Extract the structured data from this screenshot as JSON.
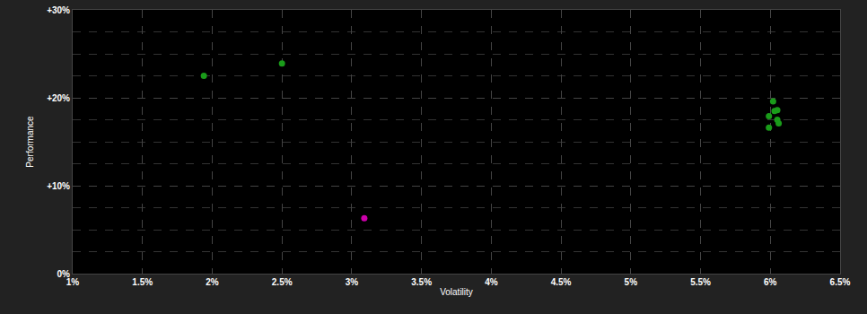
{
  "chart_data": {
    "type": "scatter",
    "x_label": "Volatility",
    "y_label": "Performance",
    "series": [
      {
        "color": "#1a9c1a",
        "marker": "circle",
        "x": [
          1.94,
          2.5,
          6.02,
          6.03,
          6.05,
          5.99,
          6.05,
          6.06,
          5.99
        ],
        "values": [
          22.5,
          23.9,
          19.6,
          18.5,
          18.6,
          17.9,
          17.5,
          17.1,
          16.6
        ]
      },
      {
        "color": "#cc00aa",
        "marker": "circle",
        "x": [
          3.09
        ],
        "values": [
          6.3
        ]
      }
    ],
    "xlim": [
      1,
      6.5
    ],
    "xticks": [
      {
        "value": 1,
        "label": "1%"
      },
      {
        "value": 1.5,
        "label": "1.5%"
      },
      {
        "value": 2,
        "label": "2%"
      },
      {
        "value": 2.5,
        "label": "2.5%"
      },
      {
        "value": 3,
        "label": "3%"
      },
      {
        "value": 3.5,
        "label": "3.5%"
      },
      {
        "value": 4,
        "label": "4%"
      },
      {
        "value": 4.5,
        "label": "4.5%"
      },
      {
        "value": 5,
        "label": "5%"
      },
      {
        "value": 5.5,
        "label": "5.5%"
      },
      {
        "value": 6,
        "label": "6%"
      },
      {
        "value": 6.5,
        "label": "6.5%"
      }
    ],
    "ylim": [
      0,
      30
    ],
    "yticks": [
      {
        "value": 0,
        "label": "0%"
      },
      {
        "value": 10,
        "label": "+10%"
      },
      {
        "value": 20,
        "label": "+20%"
      },
      {
        "value": 30,
        "label": "+30%"
      }
    ],
    "grid": true
  }
}
